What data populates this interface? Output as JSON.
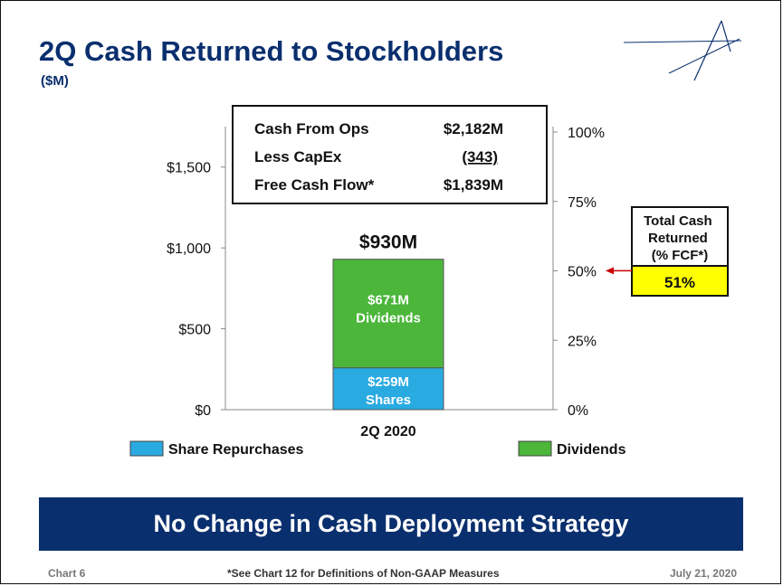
{
  "slide": {
    "title": "2Q Cash Returned to Stockholders",
    "subtitle": "($M)",
    "banner": "No Change in Cash Deployment Strategy",
    "footer_left": "Chart 6",
    "footer_mid": "*See Chart 12 for Definitions of Non-GAAP Measures",
    "footer_right": "July 21, 2020"
  },
  "summary_box": {
    "rows": [
      {
        "label": "Cash From Ops",
        "value": "$2,182M"
      },
      {
        "label": "Less CapEx",
        "value": "(343)"
      },
      {
        "label": "Free Cash Flow*",
        "value": "$1,839M"
      }
    ]
  },
  "callout": {
    "title": "Total Cash Returned (% FCF*)",
    "value": "51%"
  },
  "colors": {
    "navy": "#0a2f6e",
    "share_repurchases": "#29aae1",
    "dividends": "#4bb63a",
    "callout_fill": "#ffff00",
    "arrow": "#cc0000"
  },
  "chart_data": {
    "type": "bar",
    "stacked": true,
    "categories": [
      "2Q 2020"
    ],
    "series": [
      {
        "name": "Share Repurchases",
        "values": [
          259
        ],
        "label": "$259M\nShares"
      },
      {
        "name": "Dividends",
        "values": [
          671
        ],
        "label": "$671M\nDividends"
      }
    ],
    "total_label": "$930M",
    "ylim": [
      0,
      1750
    ],
    "yticks": [
      0,
      500,
      1000,
      1500
    ],
    "ytick_labels": [
      "$0",
      "$500",
      "$1,000",
      "$1,500"
    ],
    "y2lim": [
      0,
      1
    ],
    "y2ticks": [
      0,
      0.25,
      0.5,
      0.75,
      1
    ],
    "y2tick_labels": [
      "0%",
      "25%",
      "50%",
      "75%",
      "100%"
    ],
    "secondary_marker": 0.51,
    "legend": [
      "Share Repurchases",
      "Dividends"
    ],
    "legend_position": "bottom"
  }
}
